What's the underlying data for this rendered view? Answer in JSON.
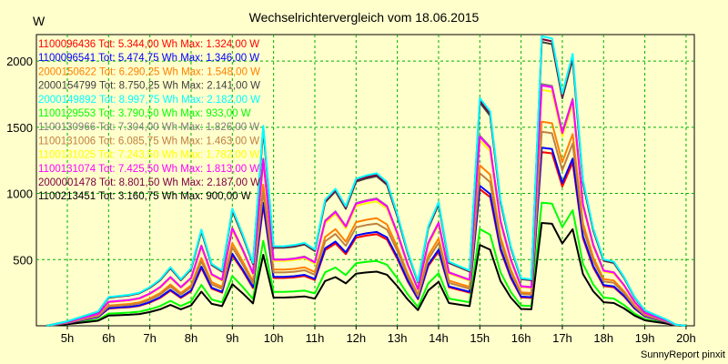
{
  "chart_data": {
    "type": "line",
    "title": "Wechselrichtervergleich vom 18.06.2015",
    "ylabel": "W",
    "footer": "SunnyReport pinxit",
    "x_ticks": [
      "5h",
      "6h",
      "7h",
      "8h",
      "9h",
      "10h",
      "11h",
      "12h",
      "13h",
      "14h",
      "15h",
      "16h",
      "17h",
      "18h",
      "19h",
      "20h"
    ],
    "y_ticks": [
      500,
      1000,
      1500,
      2000
    ],
    "xlim": [
      4.25,
      20.2
    ],
    "ylim": [
      0,
      2200
    ],
    "grid": true,
    "legend_position": "top-left",
    "x": [
      4.5,
      4.75,
      5.0,
      5.25,
      5.5,
      5.75,
      6.0,
      6.25,
      6.5,
      6.75,
      7.0,
      7.25,
      7.5,
      7.75,
      8.0,
      8.25,
      8.5,
      8.75,
      9.0,
      9.25,
      9.5,
      9.75,
      10.0,
      10.25,
      10.5,
      10.75,
      11.0,
      11.25,
      11.5,
      11.75,
      12.0,
      12.25,
      12.5,
      12.75,
      13.0,
      13.25,
      13.5,
      13.75,
      14.0,
      14.25,
      14.5,
      14.75,
      15.0,
      15.25,
      15.5,
      15.75,
      16.0,
      16.25,
      16.5,
      16.75,
      17.0,
      17.25,
      17.5,
      17.75,
      18.0,
      18.25,
      18.5,
      18.75,
      19.0,
      19.25,
      19.5,
      19.75,
      20.0
    ],
    "base": [
      0,
      10,
      20,
      35,
      50,
      65,
      130,
      135,
      140,
      150,
      175,
      210,
      265,
      210,
      260,
      435,
      280,
      250,
      530,
      415,
      285,
      905,
      360,
      360,
      365,
      375,
      345,
      570,
      620,
      540,
      665,
      680,
      690,
      650,
      505,
      335,
      200,
      450,
      560,
      290,
      270,
      250,
      1030,
      970,
      570,
      360,
      215,
      210,
      1310,
      1300,
      1050,
      1230,
      660,
      440,
      300,
      290,
      220,
      130,
      70,
      50,
      30,
      5,
      0
    ],
    "series": [
      {
        "name": "1100096436",
        "tot": "5.344,00",
        "max": "1.324,00",
        "color": "#ff0000",
        "scale": 0.6
      },
      {
        "name": "1100096541",
        "tot": "5.474,75",
        "max": "1.346,00",
        "color": "#0000ff",
        "scale": 0.615
      },
      {
        "name": "2000150622",
        "tot": "6.290,25",
        "max": "1.548,00",
        "color": "#ff8000",
        "scale": 0.705
      },
      {
        "name": "2000154799",
        "tot": "8.750,25",
        "max": "2.141,00",
        "color": "#404040",
        "scale": 0.98
      },
      {
        "name": "2000149892",
        "tot": "8.997,75",
        "max": "2.182,00",
        "color": "#00ffff",
        "scale": 1.0
      },
      {
        "name": "1100129553",
        "tot": "3.790,50",
        "max": "933,00",
        "color": "#00ff00",
        "scale": 0.425
      },
      {
        "name": "1100130966",
        "tot": "7.304,00",
        "max": "1.826,00",
        "color": "#808080",
        "scale": 0.835
      },
      {
        "name": "1100131006",
        "tot": "6.085,75",
        "max": "1.463,00",
        "color": "#c08040",
        "scale": 0.67
      },
      {
        "name": "1100131025",
        "tot": "7.243,50",
        "max": "1.782,00",
        "color": "#ffff00",
        "scale": 0.815
      },
      {
        "name": "1100131074",
        "tot": "7.425,50",
        "max": "1.813,00",
        "color": "#ff00ff",
        "scale": 0.83
      },
      {
        "name": "2000001478",
        "tot": "8.801,50",
        "max": "2.187,00",
        "color": "#800040",
        "scale": 0.99
      },
      {
        "name": "1100213451",
        "tot": "3.160,75",
        "max": "900,00",
        "color": "#000000",
        "scale": 0.355
      }
    ],
    "legend_tot_label": "Tot:",
    "legend_unit_wh": "Wh",
    "legend_max_label": "Max:",
    "legend_unit_w": "W"
  }
}
